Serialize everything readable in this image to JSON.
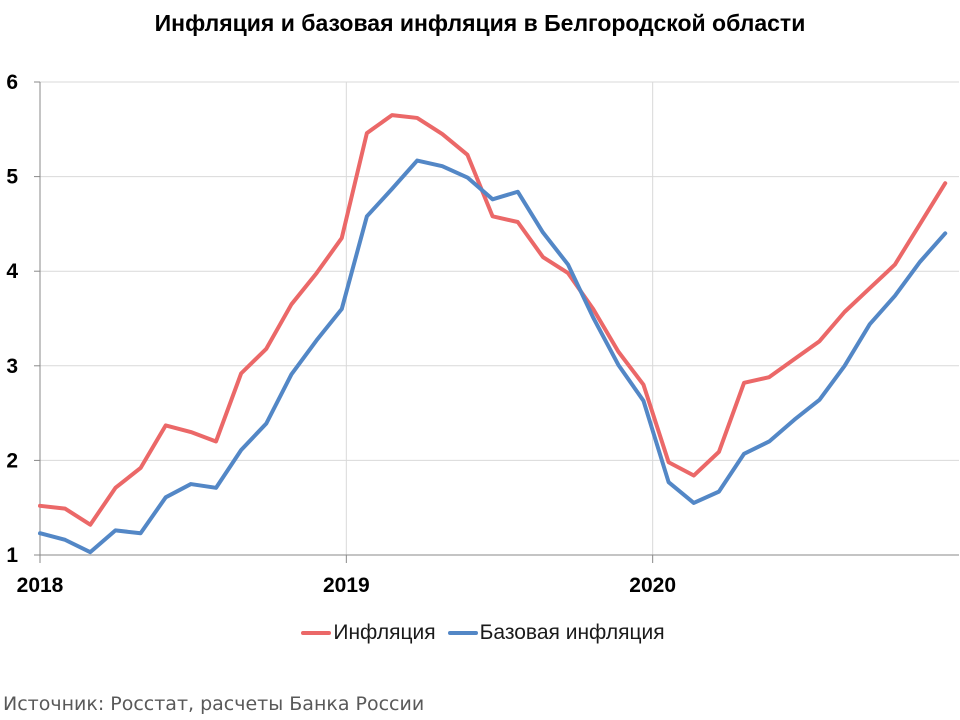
{
  "chart_data": {
    "type": "line",
    "title": "Инфляция и базовая инфляция в Белгородской области",
    "xlabel": "",
    "ylabel": "",
    "x_start": "2018-01",
    "x_frequency": "monthly",
    "xlim": [
      "2018-01",
      "2020-12"
    ],
    "ylim": [
      1,
      6
    ],
    "y_ticks": [
      1,
      2,
      3,
      4,
      5,
      6
    ],
    "x_tick_labels": [
      "2018",
      "2019",
      "2020"
    ],
    "grid": true,
    "legend_position": "bottom",
    "series": [
      {
        "name": "Инфляция",
        "color": "#EB6868",
        "values": [
          1.52,
          1.49,
          1.32,
          1.71,
          1.92,
          2.37,
          2.3,
          2.2,
          2.92,
          3.18,
          3.65,
          3.98,
          4.35,
          5.46,
          5.65,
          5.62,
          5.45,
          5.23,
          4.58,
          4.52,
          4.15,
          3.98,
          3.6,
          3.15,
          2.8,
          1.98,
          1.84,
          2.09,
          2.82,
          2.88,
          3.07,
          3.26,
          3.57,
          3.82,
          4.07,
          4.5,
          4.93
        ]
      },
      {
        "name": "Базовая инфляция",
        "color": "#5387C6",
        "values": [
          1.23,
          1.16,
          1.03,
          1.26,
          1.23,
          1.61,
          1.75,
          1.71,
          2.11,
          2.39,
          2.91,
          3.27,
          3.6,
          4.58,
          4.87,
          5.17,
          5.11,
          4.99,
          4.76,
          4.84,
          4.41,
          4.07,
          3.51,
          3.01,
          2.63,
          1.77,
          1.55,
          1.67,
          2.07,
          2.2,
          2.43,
          2.64,
          3.0,
          3.44,
          3.74,
          4.1,
          4.4
        ]
      }
    ]
  },
  "source_note": "Источник: Росстат, расчеты Банка России"
}
